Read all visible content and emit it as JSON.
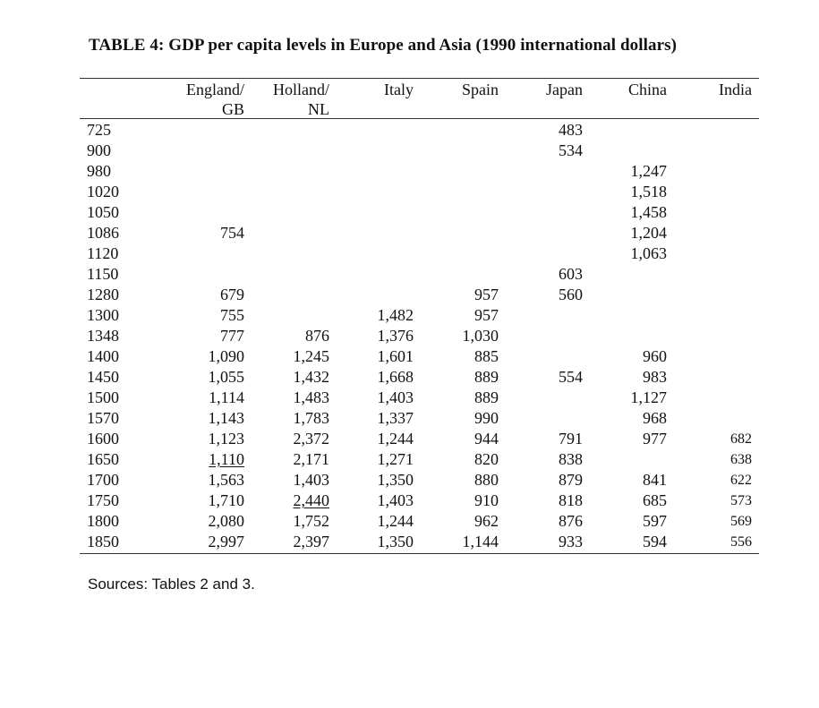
{
  "title": "TABLE 4: GDP per capita levels in Europe and Asia (1990 international dollars)",
  "columns": [
    {
      "key": "england",
      "line1": "England/",
      "line2": "GB"
    },
    {
      "key": "holland",
      "line1": "Holland/",
      "line2": "NL"
    },
    {
      "key": "italy",
      "line1": "Italy",
      "line2": ""
    },
    {
      "key": "spain",
      "line1": "Spain",
      "line2": ""
    },
    {
      "key": "japan",
      "line1": "Japan",
      "line2": ""
    },
    {
      "key": "china",
      "line1": "China",
      "line2": ""
    },
    {
      "key": "india",
      "line1": "India",
      "line2": ""
    }
  ],
  "rows": [
    {
      "year": "725",
      "england": "",
      "holland": "",
      "italy": "",
      "spain": "",
      "japan": "483",
      "china": "",
      "india": ""
    },
    {
      "year": "900",
      "england": "",
      "holland": "",
      "italy": "",
      "spain": "",
      "japan": "534",
      "china": "",
      "india": ""
    },
    {
      "year": "980",
      "england": "",
      "holland": "",
      "italy": "",
      "spain": "",
      "japan": "",
      "china": "1,247",
      "india": ""
    },
    {
      "year": "1020",
      "england": "",
      "holland": "",
      "italy": "",
      "spain": "",
      "japan": "",
      "china": "1,518",
      "india": ""
    },
    {
      "year": "1050",
      "england": "",
      "holland": "",
      "italy": "",
      "spain": "",
      "japan": "",
      "china": "1,458",
      "india": ""
    },
    {
      "year": "1086",
      "england": "754",
      "holland": "",
      "italy": "",
      "spain": "",
      "japan": "",
      "china": "1,204",
      "india": ""
    },
    {
      "year": "1120",
      "england": "",
      "holland": "",
      "italy": "",
      "spain": "",
      "japan": "",
      "china": "1,063",
      "india": ""
    },
    {
      "year": "1150",
      "england": "",
      "holland": "",
      "italy": "",
      "spain": "",
      "japan": "603",
      "china": "",
      "india": ""
    },
    {
      "year": "1280",
      "england": "679",
      "holland": "",
      "italy": "",
      "spain": "957",
      "japan": "560",
      "china": "",
      "india": ""
    },
    {
      "year": "1300",
      "england": "755",
      "holland": "",
      "italy": "1,482",
      "spain": "957",
      "japan": "",
      "china": "",
      "india": ""
    },
    {
      "year": "1348",
      "england": "777",
      "holland": "876",
      "italy": "1,376",
      "spain": "1,030",
      "japan": "",
      "china": "",
      "india": ""
    },
    {
      "year": "1400",
      "england": "1,090",
      "holland": "1,245",
      "italy": "1,601",
      "spain": "885",
      "japan": "",
      "china": "960",
      "india": ""
    },
    {
      "year": "1450",
      "england": "1,055",
      "holland": "1,432",
      "italy": "1,668",
      "spain": "889",
      "japan": "554",
      "china": "983",
      "india": ""
    },
    {
      "year": "1500",
      "england": "1,114",
      "holland": "1,483",
      "italy": "1,403",
      "spain": "889",
      "japan": "",
      "china": "1,127",
      "india": ""
    },
    {
      "year": "1570",
      "england": "1,143",
      "holland": "1,783",
      "italy": "1,337",
      "spain": "990",
      "japan": "",
      "china": "968",
      "india": ""
    },
    {
      "year": "1600",
      "england": "1,123",
      "holland": "2,372",
      "italy": "1,244",
      "spain": "944",
      "japan": "791",
      "china": "977",
      "india": "682"
    },
    {
      "year": "1650",
      "england": "1,110",
      "holland": "2,171",
      "italy": "1,271",
      "spain": "820",
      "japan": "838",
      "china": "",
      "india": "638"
    },
    {
      "year": "1700",
      "england": "1,563",
      "holland": "1,403",
      "italy": "1,350",
      "spain": "880",
      "japan": "879",
      "china": "841",
      "india": "622"
    },
    {
      "year": "1750",
      "england": "1,710",
      "holland": "2,440",
      "italy": "1,403",
      "spain": "910",
      "japan": "818",
      "china": "685",
      "india": "573"
    },
    {
      "year": "1800",
      "england": "2,080",
      "holland": "1,752",
      "italy": "1,244",
      "spain": "962",
      "japan": "876",
      "china": "597",
      "india": "569"
    },
    {
      "year": "1850",
      "england": "2,997",
      "holland": "2,397",
      "italy": "1,350",
      "spain": "1,144",
      "japan": "933",
      "china": "594",
      "india": "556"
    }
  ],
  "underlined": [
    {
      "row": 16,
      "col": "england"
    },
    {
      "row": 18,
      "col": "holland"
    }
  ],
  "sources": "Sources: Tables 2 and 3."
}
